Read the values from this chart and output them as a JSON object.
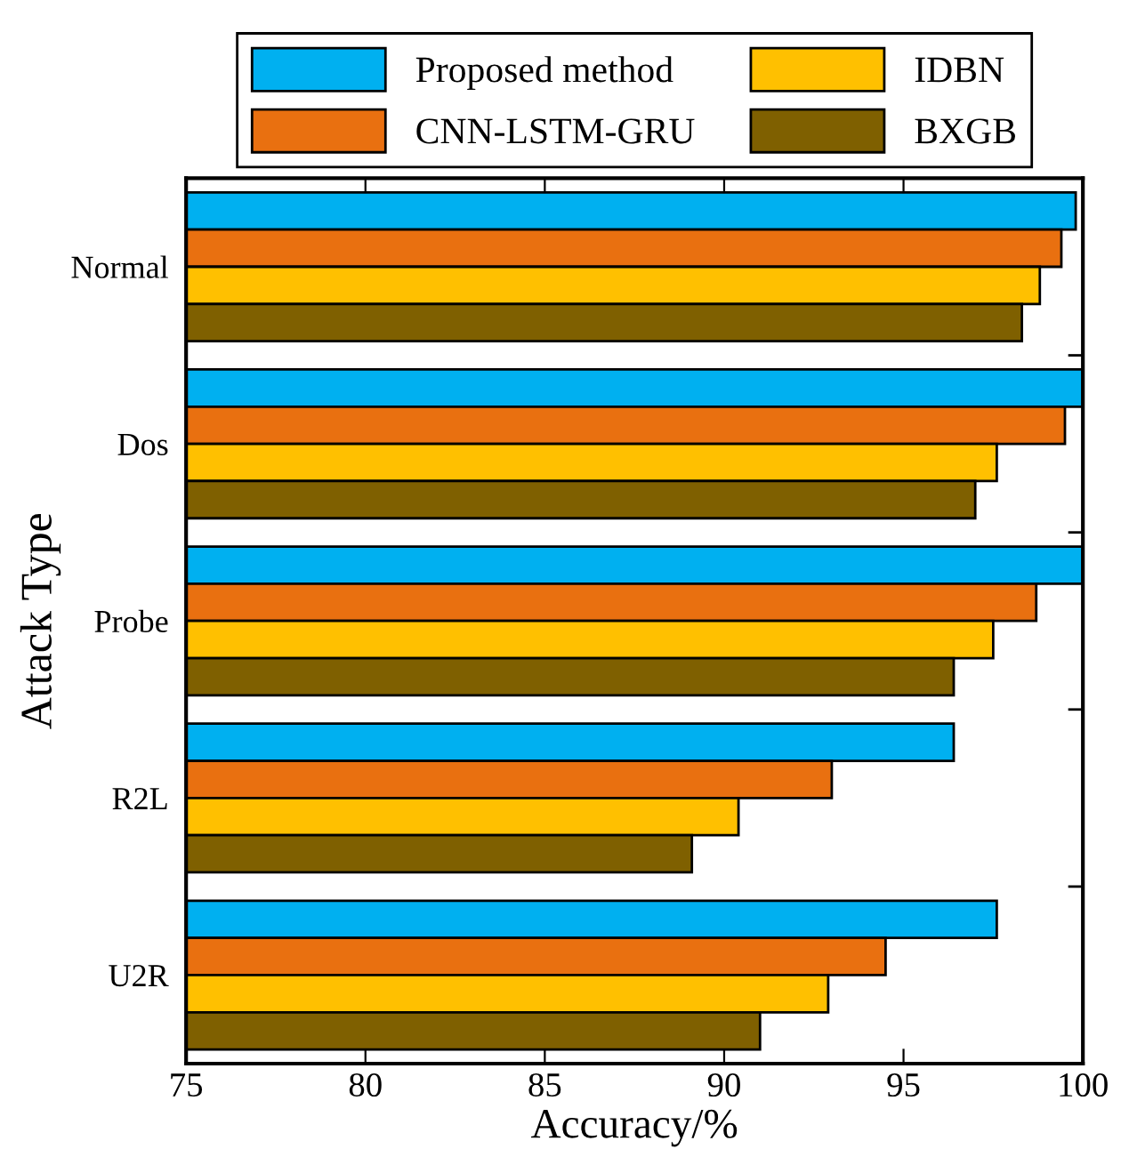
{
  "chart_data": {
    "type": "bar",
    "orientation": "horizontal",
    "xlabel": "Accuracy/%",
    "ylabel": "Attack Type",
    "categories": [
      "Normal",
      "Dos",
      "Probe",
      "R2L",
      "U2R"
    ],
    "series": [
      {
        "name": "Proposed method",
        "color": "#00b0f0",
        "values": [
          99.8,
          100,
          100,
          96.4,
          97.6
        ]
      },
      {
        "name": "CNN-LSTM-GRU",
        "color": "#e97010",
        "values": [
          99.4,
          99.5,
          98.7,
          93.0,
          94.5
        ]
      },
      {
        "name": "IDBN",
        "color": "#ffc000",
        "values": [
          98.8,
          97.6,
          97.5,
          90.4,
          92.9
        ]
      },
      {
        "name": "BXGB",
        "color": "#7f6000",
        "values": [
          98.3,
          97.0,
          96.4,
          89.1,
          91.0
        ]
      }
    ],
    "xlim": [
      75,
      100
    ],
    "xticks": [
      75,
      80,
      85,
      90,
      95,
      100
    ],
    "grid": false,
    "legend": "top"
  }
}
